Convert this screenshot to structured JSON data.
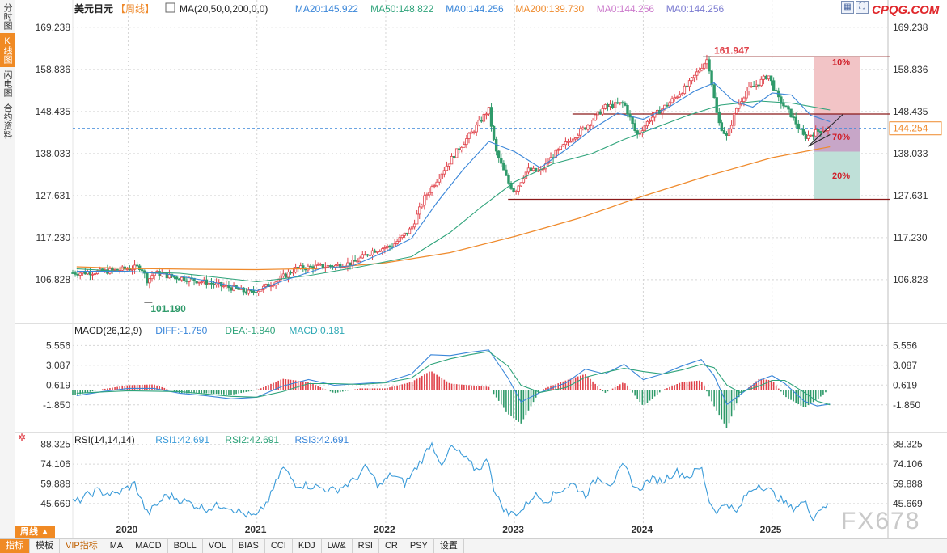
{
  "sidebar": {
    "tabs": [
      {
        "label": "分时图"
      },
      {
        "label": "K线图"
      },
      {
        "label": "闪电图"
      },
      {
        "label": "合约资料"
      }
    ]
  },
  "header": {
    "instrument": "美元日元",
    "period": "【周线】",
    "ma_legend": [
      {
        "text": "MA(20,50,0,200,0,0)",
        "color": "#222222"
      },
      {
        "text": "MA20:145.922",
        "color": "#3a86d9"
      },
      {
        "text": "MA50:148.822",
        "color": "#2ea37a"
      },
      {
        "text": "MA0:144.256",
        "color": "#3a86d9"
      },
      {
        "text": "MA200:139.730",
        "color": "#ef8a2c"
      },
      {
        "text": "MA0:144.256",
        "color": "#cc7acc"
      },
      {
        "text": "MA0:144.256",
        "color": "#7a7ad0"
      }
    ]
  },
  "logo": "CPQG.COM",
  "watermark": "FX678",
  "period_tag": "周线 ▲",
  "colors": {
    "up": "#e0424a",
    "down": "#2f9a6a",
    "ma20": "#3a86d9",
    "ma50": "#2ea37a",
    "ma200": "#ef8a2c",
    "dif": "#3a86d9",
    "dea": "#2ea37a",
    "rsi": "#3a9bd9",
    "grid": "#d6d6d6",
    "resistance": "#8b1a1a"
  },
  "chart_data": [
    {
      "type": "candlestick",
      "title": "美元日元【周线】",
      "y_ticks": [
        "169.238",
        "158.836",
        "148.435",
        "138.033",
        "127.631",
        "117.230",
        "106.828"
      ],
      "ylim": [
        97.0,
        172.0
      ],
      "x_ticks": [
        "2020",
        "2021",
        "2022",
        "2023",
        "2024",
        "2025"
      ],
      "current_price": "144.254",
      "annotations": {
        "high": "161.947",
        "low": "101.190"
      },
      "levels": [
        161.947,
        147.8,
        126.7
      ],
      "zone_labels": [
        "10%",
        "70%",
        "20%"
      ],
      "close_path": [
        [
          2019.6,
          108.5
        ],
        [
          2019.8,
          108.8
        ],
        [
          2020.0,
          109.5
        ],
        [
          2020.1,
          110.0
        ],
        [
          2020.15,
          106.5
        ],
        [
          2020.2,
          108.5
        ],
        [
          2020.35,
          107.5
        ],
        [
          2020.5,
          106.8
        ],
        [
          2020.65,
          105.8
        ],
        [
          2020.8,
          104.8
        ],
        [
          2020.95,
          103.5
        ],
        [
          2021.05,
          104.8
        ],
        [
          2021.15,
          106.5
        ],
        [
          2021.3,
          109.5
        ],
        [
          2021.45,
          110.0
        ],
        [
          2021.6,
          110.2
        ],
        [
          2021.75,
          111.0
        ],
        [
          2021.9,
          114.0
        ],
        [
          2022.05,
          115.2
        ],
        [
          2022.2,
          119.5
        ],
        [
          2022.3,
          127.0
        ],
        [
          2022.45,
          134.0
        ],
        [
          2022.55,
          138.5
        ],
        [
          2022.7,
          144.5
        ],
        [
          2022.8,
          149.0
        ],
        [
          2022.85,
          139.0
        ],
        [
          2022.95,
          131.0
        ],
        [
          2023.0,
          128.5
        ],
        [
          2023.1,
          134.0
        ],
        [
          2023.2,
          133.5
        ],
        [
          2023.3,
          137.5
        ],
        [
          2023.45,
          142.0
        ],
        [
          2023.55,
          144.5
        ],
        [
          2023.7,
          149.5
        ],
        [
          2023.85,
          150.5
        ],
        [
          2023.95,
          142.5
        ],
        [
          2024.05,
          146.5
        ],
        [
          2024.2,
          150.5
        ],
        [
          2024.35,
          155.0
        ],
        [
          2024.45,
          159.5
        ],
        [
          2024.5,
          161.5
        ],
        [
          2024.58,
          146.0
        ],
        [
          2024.65,
          142.0
        ],
        [
          2024.72,
          149.0
        ],
        [
          2024.8,
          153.5
        ],
        [
          2024.9,
          155.5
        ],
        [
          2024.97,
          157.5
        ],
        [
          2025.05,
          151.5
        ],
        [
          2025.15,
          147.5
        ],
        [
          2025.25,
          142.0
        ],
        [
          2025.35,
          143.5
        ],
        [
          2025.45,
          144.25
        ]
      ],
      "ma20": [
        [
          2019.6,
          108.9
        ],
        [
          2020.0,
          108.9
        ],
        [
          2020.3,
          108.2
        ],
        [
          2020.6,
          106.6
        ],
        [
          2020.9,
          104.6
        ],
        [
          2021.0,
          104.1
        ],
        [
          2021.2,
          106.5
        ],
        [
          2021.5,
          109.6
        ],
        [
          2021.75,
          110.3
        ],
        [
          2022.0,
          113.8
        ],
        [
          2022.2,
          117.0
        ],
        [
          2022.4,
          126.0
        ],
        [
          2022.6,
          134.0
        ],
        [
          2022.8,
          141.0
        ],
        [
          2023.0,
          138.5
        ],
        [
          2023.2,
          134.5
        ],
        [
          2023.4,
          139.0
        ],
        [
          2023.6,
          144.0
        ],
        [
          2023.8,
          148.0
        ],
        [
          2024.0,
          146.5
        ],
        [
          2024.2,
          149.5
        ],
        [
          2024.4,
          153.5
        ],
        [
          2024.55,
          155.5
        ],
        [
          2024.7,
          151.0
        ],
        [
          2024.85,
          149.5
        ],
        [
          2025.0,
          153.0
        ],
        [
          2025.15,
          152.5
        ],
        [
          2025.3,
          147.5
        ],
        [
          2025.45,
          145.9
        ]
      ],
      "ma50": [
        [
          2019.6,
          109.5
        ],
        [
          2020.0,
          108.8
        ],
        [
          2020.4,
          108.4
        ],
        [
          2020.8,
          107.0
        ],
        [
          2021.0,
          106.3
        ],
        [
          2021.4,
          107.8
        ],
        [
          2021.8,
          110.0
        ],
        [
          2022.2,
          112.5
        ],
        [
          2022.5,
          118.5
        ],
        [
          2022.75,
          125.0
        ],
        [
          2023.0,
          131.0
        ],
        [
          2023.3,
          135.5
        ],
        [
          2023.6,
          138.0
        ],
        [
          2023.85,
          141.5
        ],
        [
          2024.1,
          144.5
        ],
        [
          2024.35,
          147.5
        ],
        [
          2024.6,
          150.0
        ],
        [
          2024.9,
          151.0
        ],
        [
          2025.15,
          150.5
        ],
        [
          2025.45,
          148.8
        ]
      ],
      "ma200": [
        [
          2019.6,
          110.0
        ],
        [
          2020.0,
          109.6
        ],
        [
          2020.5,
          109.4
        ],
        [
          2021.0,
          109.3
        ],
        [
          2021.5,
          109.6
        ],
        [
          2022.0,
          111.0
        ],
        [
          2022.5,
          113.5
        ],
        [
          2023.0,
          117.5
        ],
        [
          2023.5,
          122.0
        ],
        [
          2024.0,
          127.5
        ],
        [
          2024.5,
          132.5
        ],
        [
          2025.0,
          137.0
        ],
        [
          2025.45,
          139.7
        ]
      ]
    },
    {
      "type": "macd",
      "legend": [
        {
          "text": "MACD(26,12,9)",
          "color": "#222222"
        },
        {
          "text": "DIFF:-1.750",
          "color": "#3a86d9"
        },
        {
          "text": "DEA:-1.840",
          "color": "#2ea37a"
        },
        {
          "text": "MACD:0.181",
          "color": "#2fa9b6"
        }
      ],
      "y_ticks": [
        "5.556",
        "3.087",
        "0.619",
        "-1.850"
      ],
      "ylim": [
        -4.8,
        6.8
      ],
      "dif": [
        [
          2019.6,
          -0.7
        ],
        [
          2019.8,
          -0.2
        ],
        [
          2020.0,
          0.2
        ],
        [
          2020.2,
          0.2
        ],
        [
          2020.4,
          -0.4
        ],
        [
          2020.6,
          -0.7
        ],
        [
          2020.8,
          -1.1
        ],
        [
          2021.0,
          -0.9
        ],
        [
          2021.2,
          0.5
        ],
        [
          2021.4,
          1.3
        ],
        [
          2021.6,
          0.6
        ],
        [
          2021.8,
          0.8
        ],
        [
          2022.0,
          1.0
        ],
        [
          2022.2,
          2.0
        ],
        [
          2022.35,
          4.4
        ],
        [
          2022.5,
          4.3
        ],
        [
          2022.65,
          4.7
        ],
        [
          2022.8,
          5.0
        ],
        [
          2022.95,
          1.5
        ],
        [
          2023.05,
          -1.5
        ],
        [
          2023.2,
          -0.3
        ],
        [
          2023.4,
          0.9
        ],
        [
          2023.55,
          2.6
        ],
        [
          2023.7,
          2.0
        ],
        [
          2023.85,
          3.2
        ],
        [
          2024.0,
          1.3
        ],
        [
          2024.15,
          2.0
        ],
        [
          2024.3,
          3.0
        ],
        [
          2024.45,
          3.8
        ],
        [
          2024.55,
          1.8
        ],
        [
          2024.65,
          -1.8
        ],
        [
          2024.75,
          -0.6
        ],
        [
          2024.9,
          1.2
        ],
        [
          2025.0,
          1.8
        ],
        [
          2025.1,
          0.8
        ],
        [
          2025.25,
          -1.4
        ],
        [
          2025.35,
          -2.0
        ],
        [
          2025.45,
          -1.75
        ]
      ],
      "dea": [
        [
          2019.6,
          -0.4
        ],
        [
          2020.0,
          -0.1
        ],
        [
          2020.4,
          -0.2
        ],
        [
          2020.8,
          -0.8
        ],
        [
          2021.0,
          -0.9
        ],
        [
          2021.2,
          -0.2
        ],
        [
          2021.4,
          0.8
        ],
        [
          2021.6,
          0.8
        ],
        [
          2021.8,
          0.7
        ],
        [
          2022.0,
          0.9
        ],
        [
          2022.2,
          1.5
        ],
        [
          2022.35,
          3.2
        ],
        [
          2022.5,
          3.9
        ],
        [
          2022.65,
          4.4
        ],
        [
          2022.8,
          4.8
        ],
        [
          2022.95,
          3.0
        ],
        [
          2023.05,
          0.6
        ],
        [
          2023.2,
          -0.3
        ],
        [
          2023.4,
          0.3
        ],
        [
          2023.55,
          1.6
        ],
        [
          2023.7,
          2.2
        ],
        [
          2023.85,
          2.7
        ],
        [
          2024.0,
          2.3
        ],
        [
          2024.15,
          2.0
        ],
        [
          2024.3,
          2.5
        ],
        [
          2024.45,
          3.2
        ],
        [
          2024.55,
          2.8
        ],
        [
          2024.65,
          0.6
        ],
        [
          2024.75,
          -0.3
        ],
        [
          2024.9,
          0.5
        ],
        [
          2025.0,
          1.2
        ],
        [
          2025.1,
          1.2
        ],
        [
          2025.25,
          -0.3
        ],
        [
          2025.35,
          -1.4
        ],
        [
          2025.45,
          -1.84
        ]
      ]
    },
    {
      "type": "line",
      "legend": [
        {
          "text": "RSI(14,14,14)",
          "color": "#222222"
        },
        {
          "text": "RSI1:42.691",
          "color": "#3a9bd9"
        },
        {
          "text": "RSI2:42.691",
          "color": "#2ea37a"
        },
        {
          "text": "RSI3:42.691",
          "color": "#3a86d9"
        }
      ],
      "y_ticks": [
        "88.325",
        "74.106",
        "59.888",
        "45.669"
      ],
      "ylim": [
        31.0,
        94.0
      ],
      "rsi": [
        [
          2019.6,
          47
        ],
        [
          2019.75,
          55
        ],
        [
          2019.9,
          52
        ],
        [
          2020.05,
          60
        ],
        [
          2020.15,
          38
        ],
        [
          2020.3,
          52
        ],
        [
          2020.45,
          47
        ],
        [
          2020.6,
          42
        ],
        [
          2020.75,
          45
        ],
        [
          2020.9,
          38
        ],
        [
          2021.0,
          36
        ],
        [
          2021.1,
          50
        ],
        [
          2021.2,
          72
        ],
        [
          2021.3,
          60
        ],
        [
          2021.45,
          58
        ],
        [
          2021.6,
          55
        ],
        [
          2021.75,
          62
        ],
        [
          2021.85,
          72
        ],
        [
          2021.95,
          58
        ],
        [
          2022.05,
          67
        ],
        [
          2022.15,
          60
        ],
        [
          2022.3,
          80
        ],
        [
          2022.35,
          90
        ],
        [
          2022.45,
          72
        ],
        [
          2022.5,
          87
        ],
        [
          2022.6,
          80
        ],
        [
          2022.7,
          70
        ],
        [
          2022.8,
          77
        ],
        [
          2022.85,
          52
        ],
        [
          2022.95,
          38
        ],
        [
          2023.05,
          40
        ],
        [
          2023.15,
          52
        ],
        [
          2023.25,
          48
        ],
        [
          2023.35,
          55
        ],
        [
          2023.45,
          60
        ],
        [
          2023.55,
          52
        ],
        [
          2023.65,
          65
        ],
        [
          2023.75,
          60
        ],
        [
          2023.85,
          73
        ],
        [
          2023.95,
          55
        ],
        [
          2024.05,
          63
        ],
        [
          2024.15,
          62
        ],
        [
          2024.25,
          69
        ],
        [
          2024.35,
          65
        ],
        [
          2024.45,
          72
        ],
        [
          2024.52,
          45
        ],
        [
          2024.58,
          40
        ],
        [
          2024.65,
          47
        ],
        [
          2024.72,
          38
        ],
        [
          2024.8,
          52
        ],
        [
          2024.9,
          60
        ],
        [
          2024.98,
          55
        ],
        [
          2025.05,
          50
        ],
        [
          2025.15,
          42
        ],
        [
          2025.25,
          47
        ],
        [
          2025.32,
          36
        ],
        [
          2025.4,
          45
        ],
        [
          2025.45,
          42.7
        ]
      ]
    }
  ]
}
